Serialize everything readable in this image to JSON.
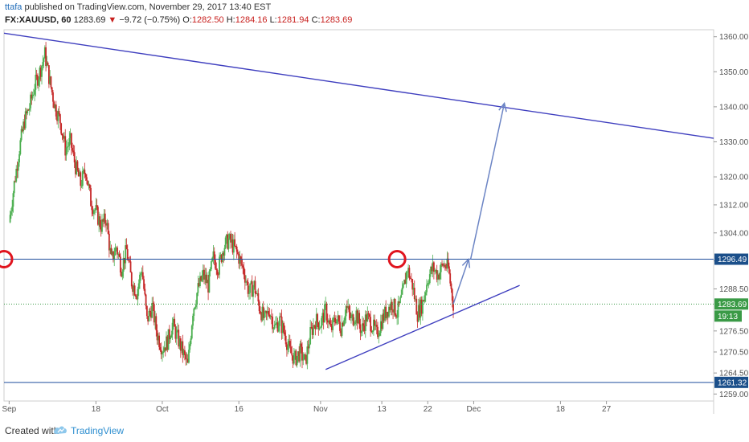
{
  "header": {
    "user": "ttafa",
    "published": "published on TradingView.com, November 29, 2017 13:40 EST",
    "symbol": "FX:XAUUSD, 60",
    "last": "1283.69",
    "arrow": "▼",
    "change": "−9.72 (−0.75%)",
    "o_label": "O:",
    "o_val": "1282.50",
    "h_label": "H:",
    "h_val": "1284.16",
    "l_label": "L:",
    "l_val": "1281.94",
    "c_label": "C:",
    "c_val": "1283.69"
  },
  "footer": {
    "created": "Created with",
    "brand": "TradingView",
    "icon": "tradingview-cloud-icon"
  },
  "colors": {
    "up": "#4caf50",
    "down": "#c62828",
    "trendline": "#3f3fbf",
    "level": "#1f4e9c",
    "projection": "#6b84c4",
    "circle": "#e0141e",
    "price_tag": "#1b4f8a",
    "current_tag": "#3a9a46"
  },
  "chart_data": {
    "type": "candlestick",
    "symbol": "FX:XAUUSD",
    "interval": "60",
    "ylim": [
      1256,
      1362
    ],
    "y_ticks": [
      1360,
      1350,
      1340,
      1330,
      1320,
      1312,
      1304,
      1296,
      1288,
      1276,
      1270,
      1264,
      1258
    ],
    "y_tick_labels": [
      "1360.00",
      "1350.00",
      "1340.00",
      "1330.00",
      "1320.00",
      "1312.00",
      "1304.00",
      "1296.50",
      "1288.50",
      "1276.50",
      "1270.50",
      "1264.50",
      "1259.00"
    ],
    "x_ticks": [
      {
        "label": "Sep",
        "day": 0
      },
      {
        "label": "18",
        "day": 17
      },
      {
        "label": "Oct",
        "day": 30
      },
      {
        "label": "16",
        "day": 45
      },
      {
        "label": "Nov",
        "day": 61
      },
      {
        "label": "13",
        "day": 73
      },
      {
        "label": "22",
        "day": 82
      },
      {
        "label": "Dec",
        "day": 91
      },
      {
        "label": "18",
        "day": 108
      },
      {
        "label": "27",
        "day": 117
      }
    ],
    "xlim_days": [
      -1,
      138
    ],
    "price_path": [
      [
        0,
        1307
      ],
      [
        1,
        1318
      ],
      [
        2,
        1328
      ],
      [
        3,
        1336
      ],
      [
        4,
        1340
      ],
      [
        5,
        1346
      ],
      [
        6,
        1350
      ],
      [
        7,
        1355
      ],
      [
        8,
        1347
      ],
      [
        9,
        1340
      ],
      [
        10,
        1336
      ],
      [
        11,
        1328
      ],
      [
        12,
        1330
      ],
      [
        13,
        1323
      ],
      [
        14,
        1318
      ],
      [
        15,
        1322
      ],
      [
        16,
        1313
      ],
      [
        17,
        1310
      ],
      [
        18,
        1306
      ],
      [
        19,
        1308
      ],
      [
        20,
        1296
      ],
      [
        21,
        1300
      ],
      [
        22,
        1294
      ],
      [
        23,
        1299
      ],
      [
        24,
        1290
      ],
      [
        25,
        1287
      ],
      [
        26,
        1294
      ],
      [
        27,
        1279
      ],
      [
        28,
        1283
      ],
      [
        29,
        1275
      ],
      [
        30,
        1271
      ],
      [
        31,
        1273
      ],
      [
        32,
        1278
      ],
      [
        33,
        1274
      ],
      [
        34,
        1270
      ],
      [
        35,
        1266
      ],
      [
        36,
        1282
      ],
      [
        37,
        1288
      ],
      [
        38,
        1292
      ],
      [
        39,
        1289
      ],
      [
        40,
        1297
      ],
      [
        41,
        1294
      ],
      [
        42,
        1300
      ],
      [
        43,
        1302
      ],
      [
        44,
        1300
      ],
      [
        45,
        1297
      ],
      [
        46,
        1293
      ],
      [
        47,
        1287
      ],
      [
        48,
        1289
      ],
      [
        49,
        1283
      ],
      [
        50,
        1279
      ],
      [
        51,
        1282
      ],
      [
        52,
        1277
      ],
      [
        53,
        1279
      ],
      [
        54,
        1275
      ],
      [
        55,
        1270
      ],
      [
        56,
        1268
      ],
      [
        57,
        1270
      ],
      [
        58,
        1267
      ],
      [
        59,
        1275
      ],
      [
        60,
        1279
      ],
      [
        61,
        1278
      ],
      [
        62,
        1282
      ],
      [
        63,
        1276
      ],
      [
        64,
        1280
      ],
      [
        65,
        1277
      ],
      [
        66,
        1283
      ],
      [
        67,
        1279
      ],
      [
        68,
        1281
      ],
      [
        69,
        1276
      ],
      [
        70,
        1280
      ],
      [
        71,
        1278
      ],
      [
        72,
        1275
      ],
      [
        73,
        1279
      ],
      [
        74,
        1282
      ],
      [
        75,
        1284
      ],
      [
        76,
        1281
      ],
      [
        77,
        1286
      ],
      [
        78,
        1294
      ],
      [
        79,
        1289
      ],
      [
        80,
        1281
      ],
      [
        81,
        1284
      ],
      [
        82,
        1291
      ],
      [
        83,
        1294
      ],
      [
        84,
        1292
      ],
      [
        85,
        1295
      ],
      [
        86,
        1294
      ],
      [
        87,
        1283.69
      ]
    ],
    "horizontal_levels": [
      {
        "price": 1296.49,
        "label": "1296.49"
      },
      {
        "price": 1261.32,
        "label": "1261.32"
      }
    ],
    "current_price": {
      "price": 1283.69,
      "label": "1283.69",
      "countdown": "19:13"
    },
    "drawings": {
      "upper_trendline": [
        [
          -1,
          1361
        ],
        [
          138,
          1331
        ]
      ],
      "support_trendline": [
        [
          62,
          1265
        ],
        [
          100,
          1289
        ]
      ],
      "projection_arrow": [
        [
          87,
          1283.69
        ],
        [
          90,
          1296.49
        ],
        [
          97,
          1341
        ]
      ],
      "circles": [
        {
          "day": -1,
          "price": 1296.49
        },
        {
          "day": 76,
          "price": 1296.49
        }
      ]
    }
  }
}
